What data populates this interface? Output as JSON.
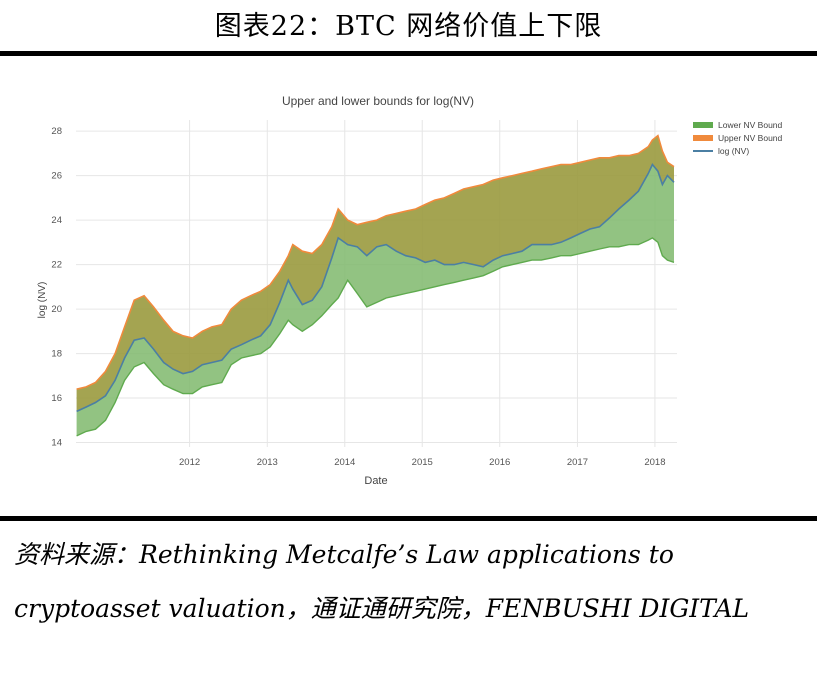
{
  "figure_title": "图表22：BTC 网络价值上下限",
  "source_note": "资料来源：Rethinking Metcalfe’s Law applications to cryptoasset valuation，通证通研究院，FENBUSHI DIGITAL",
  "colors": {
    "lower_bound": "#5faa4e",
    "upper_bound": "#f08a3c",
    "log_nv": "#4b7fa3",
    "band_fill": "#7fb86c",
    "upper_fill": "#9a9a3e"
  },
  "chart_data": {
    "type": "area",
    "title": "Upper and lower bounds for log(NV)",
    "xlabel": "Date",
    "ylabel": "log (NV)",
    "xlim": [
      "2010-07-15",
      "2018-04-15"
    ],
    "ylim": [
      13.8,
      28.5
    ],
    "x_ticks": [
      "2012",
      "2013",
      "2014",
      "2015",
      "2016",
      "2017",
      "2018"
    ],
    "y_ticks": [
      14,
      16,
      18,
      20,
      22,
      24,
      26,
      28
    ],
    "grid": true,
    "legend_position": "top-right",
    "x": [
      "2010-07-18",
      "2010-09-01",
      "2010-10-15",
      "2010-12-01",
      "2011-01-15",
      "2011-03-01",
      "2011-04-15",
      "2011-06-01",
      "2011-07-15",
      "2011-09-01",
      "2011-10-15",
      "2011-12-01",
      "2012-01-15",
      "2012-03-01",
      "2012-04-15",
      "2012-06-01",
      "2012-07-15",
      "2012-09-01",
      "2012-10-15",
      "2012-12-01",
      "2013-01-15",
      "2013-03-01",
      "2013-04-10",
      "2013-05-01",
      "2013-06-15",
      "2013-08-01",
      "2013-09-15",
      "2013-11-01",
      "2013-12-01",
      "2014-01-15",
      "2014-03-01",
      "2014-04-15",
      "2014-06-01",
      "2014-07-15",
      "2014-09-01",
      "2014-10-15",
      "2014-12-01",
      "2015-01-15",
      "2015-03-01",
      "2015-04-15",
      "2015-06-01",
      "2015-07-15",
      "2015-09-01",
      "2015-10-15",
      "2015-12-01",
      "2016-01-15",
      "2016-03-01",
      "2016-04-15",
      "2016-06-01",
      "2016-07-15",
      "2016-09-01",
      "2016-10-15",
      "2016-12-01",
      "2017-01-15",
      "2017-03-01",
      "2017-04-15",
      "2017-06-01",
      "2017-07-15",
      "2017-09-01",
      "2017-10-15",
      "2017-12-01",
      "2017-12-20",
      "2018-01-15",
      "2018-02-05",
      "2018-03-01",
      "2018-04-01"
    ],
    "series": [
      {
        "name": "Lower NV Bound",
        "values": [
          14.3,
          14.5,
          14.6,
          15.0,
          15.8,
          16.8,
          17.4,
          17.6,
          17.1,
          16.6,
          16.4,
          16.2,
          16.2,
          16.5,
          16.6,
          16.7,
          17.5,
          17.8,
          17.9,
          18.0,
          18.3,
          18.9,
          19.5,
          19.3,
          19.0,
          19.3,
          19.7,
          20.2,
          20.5,
          21.3,
          20.7,
          20.1,
          20.3,
          20.5,
          20.6,
          20.7,
          20.8,
          20.9,
          21.0,
          21.1,
          21.2,
          21.3,
          21.4,
          21.5,
          21.7,
          21.9,
          22.0,
          22.1,
          22.2,
          22.2,
          22.3,
          22.4,
          22.4,
          22.5,
          22.6,
          22.7,
          22.8,
          22.8,
          22.9,
          22.9,
          23.1,
          23.2,
          23.0,
          22.4,
          22.2,
          22.1
        ]
      },
      {
        "name": "Upper NV Bound",
        "values": [
          16.4,
          16.5,
          16.7,
          17.2,
          18.0,
          19.2,
          20.4,
          20.6,
          20.1,
          19.5,
          19.0,
          18.8,
          18.7,
          19.0,
          19.2,
          19.3,
          20.0,
          20.4,
          20.6,
          20.8,
          21.1,
          21.7,
          22.4,
          22.9,
          22.6,
          22.5,
          22.9,
          23.7,
          24.5,
          24.0,
          23.8,
          23.9,
          24.0,
          24.2,
          24.3,
          24.4,
          24.5,
          24.7,
          24.9,
          25.0,
          25.2,
          25.4,
          25.5,
          25.6,
          25.8,
          25.9,
          26.0,
          26.1,
          26.2,
          26.3,
          26.4,
          26.5,
          26.5,
          26.6,
          26.7,
          26.8,
          26.8,
          26.9,
          26.9,
          27.0,
          27.3,
          27.6,
          27.8,
          27.1,
          26.6,
          26.4
        ]
      },
      {
        "name": "log (NV)",
        "values": [
          15.4,
          15.6,
          15.8,
          16.1,
          16.8,
          17.8,
          18.6,
          18.7,
          18.2,
          17.6,
          17.3,
          17.1,
          17.2,
          17.5,
          17.6,
          17.7,
          18.2,
          18.4,
          18.6,
          18.8,
          19.3,
          20.3,
          21.3,
          20.9,
          20.2,
          20.4,
          21.0,
          22.3,
          23.2,
          22.9,
          22.8,
          22.4,
          22.8,
          22.9,
          22.6,
          22.4,
          22.3,
          22.1,
          22.2,
          22.0,
          22.0,
          22.1,
          22.0,
          21.9,
          22.2,
          22.4,
          22.5,
          22.6,
          22.9,
          22.9,
          22.9,
          23.0,
          23.2,
          23.4,
          23.6,
          23.7,
          24.1,
          24.5,
          24.9,
          25.3,
          26.1,
          26.5,
          26.2,
          25.6,
          26.0,
          25.7
        ]
      }
    ]
  }
}
